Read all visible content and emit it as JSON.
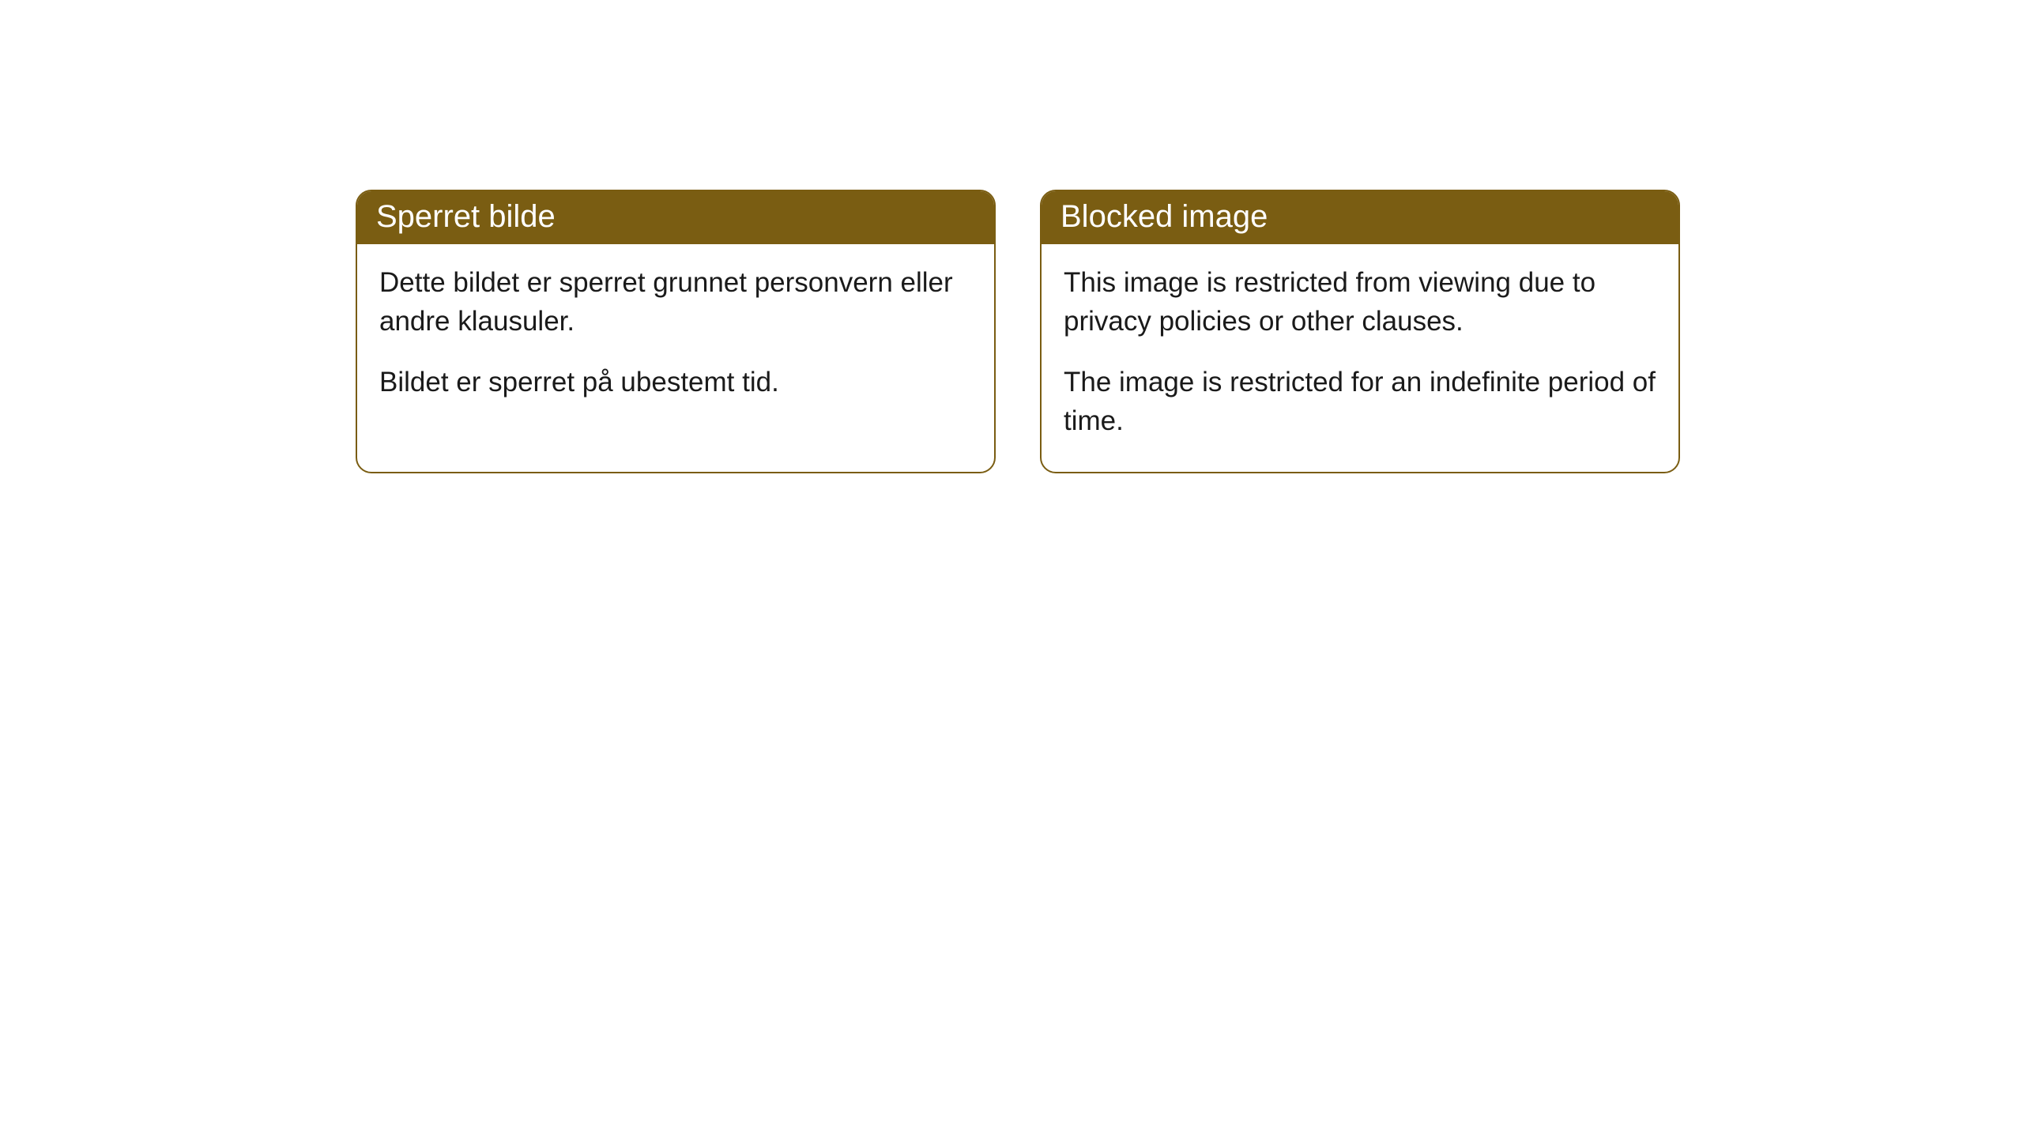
{
  "cards": [
    {
      "title": "Sperret bilde",
      "paragraph1": "Dette bildet er sperret grunnet personvern eller andre klausuler.",
      "paragraph2": "Bildet er sperret på ubestemt tid."
    },
    {
      "title": "Blocked image",
      "paragraph1": "This image is restricted from viewing due to privacy policies or other clauses.",
      "paragraph2": "The image is restricted for an indefinite period of time."
    }
  ],
  "style": {
    "header_bg_color": "#7a5d12",
    "header_text_color": "#ffffff",
    "border_color": "#7a5d12",
    "body_text_color": "#1a1a1a",
    "background_color": "#ffffff",
    "border_radius": 20,
    "header_fontsize": 40,
    "body_fontsize": 35
  }
}
